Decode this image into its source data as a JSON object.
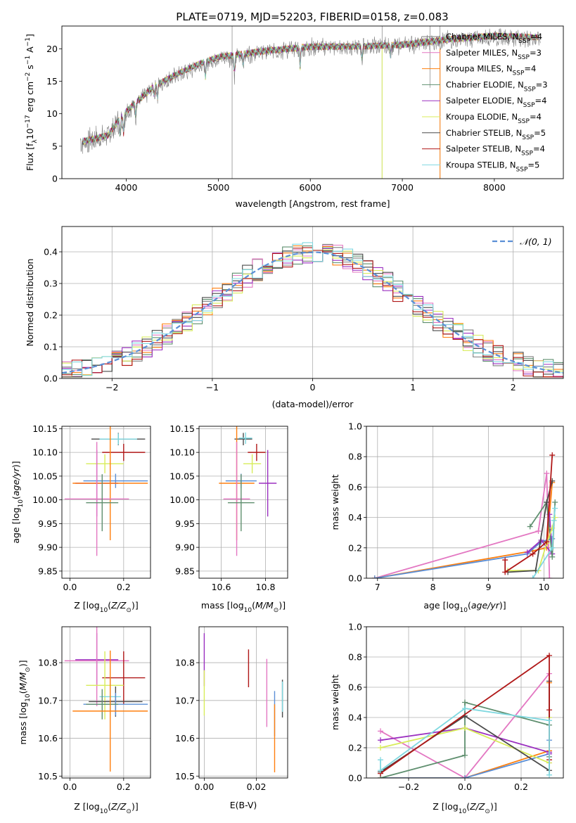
{
  "figure_title": "PLATE=0719, MJD=52203, FIBERID=0158, z=0.083",
  "models": [
    {
      "name": "Chabrier MILES, N",
      "nssp": "4",
      "color": "#7f7f7f"
    },
    {
      "name": "Salpeter MILES, N",
      "nssp": "3",
      "color": "#e377c2"
    },
    {
      "name": "Kroupa MILES, N",
      "nssp": "4",
      "color": "#ff7f0e"
    },
    {
      "name": "Chabrier ELODIE, N",
      "nssp": "3",
      "color": "#5f8f6f"
    },
    {
      "name": "Salpeter ELODIE, N",
      "nssp": "4",
      "color": "#9b30c0"
    },
    {
      "name": "Kroupa ELODIE, N",
      "nssp": "4",
      "color": "#d8ec5a"
    },
    {
      "name": "Chabrier STELIB, N",
      "nssp": "5",
      "color": "#4a4a4a"
    },
    {
      "name": "Salpeter STELIB, N",
      "nssp": "4",
      "color": "#b01818"
    },
    {
      "name": "Kroupa STELIB, N",
      "nssp": "5",
      "color": "#7fd8e0"
    }
  ],
  "nssp_sub": "SSP",
  "chart_data": [
    {
      "id": "spectrum",
      "type": "line",
      "xlabel": "wavelength [Angstrom, rest frame]",
      "ylabel": "Flux [f",
      "xlim": [
        3300,
        8750
      ],
      "ylim": [
        0,
        23.5
      ],
      "xticks": [
        4000,
        5000,
        6000,
        7000,
        8000
      ],
      "yticks": [
        0,
        5,
        10,
        15,
        20
      ],
      "continuum": [
        [
          3500,
          5.5
        ],
        [
          3800,
          6.5
        ],
        [
          3950,
          9.5
        ],
        [
          4100,
          11.5
        ],
        [
          4300,
          14
        ],
        [
          4500,
          15.5
        ],
        [
          4800,
          17.5
        ],
        [
          5000,
          18.5
        ],
        [
          5500,
          19.5
        ],
        [
          6000,
          20.2
        ],
        [
          6500,
          20.3
        ],
        [
          7000,
          20.5
        ],
        [
          7500,
          21.3
        ],
        [
          8000,
          21.8
        ],
        [
          8500,
          21.5
        ]
      ],
      "grid": false,
      "legend": "right"
    },
    {
      "id": "residual_hist",
      "type": "step",
      "xlabel": "(data-model)/error",
      "ylabel": "Normed distribution",
      "xlim": [
        -2.5,
        2.5
      ],
      "ylim": [
        0,
        0.48
      ],
      "xticks": [
        -2,
        -1,
        0,
        1,
        2
      ],
      "yticks": [
        0.0,
        0.1,
        0.2,
        0.3,
        0.4
      ],
      "gaussian_label": "𝒩(0, 1)",
      "gaussian_color": "#5b8fd6",
      "grid": true,
      "legend": "top-right"
    },
    {
      "id": "age_vs_Z",
      "type": "errorbar",
      "xlabel": "Z [log",
      "ylabel": "age  [log",
      "xlim": [
        -0.03,
        0.3
      ],
      "ylim": [
        9.835,
        10.155
      ],
      "xticks": [
        0.0,
        0.2
      ],
      "yticks": [
        9.85,
        9.9,
        9.95,
        10.0,
        10.05,
        10.1,
        10.15
      ],
      "points": [
        {
          "c": "#4a4a4a",
          "x": 0.18,
          "xerr": 0.1,
          "y": 10.128,
          "yerr": 0.013
        },
        {
          "c": "#7fd8e0",
          "x": 0.18,
          "xerr": 0.07,
          "y": 10.128,
          "yerr": 0.012
        },
        {
          "c": "#b01818",
          "x": 0.2,
          "xerr": 0.08,
          "y": 10.1,
          "yerr": 0.018
        },
        {
          "c": "#d8ec5a",
          "x": 0.13,
          "xerr": 0.07,
          "y": 10.076,
          "yerr": 0.02
        },
        {
          "c": "#5b8fd6",
          "x": 0.17,
          "xerr": 0.12,
          "y": 10.04,
          "yerr": 0.015
        },
        {
          "c": "#9b30c0",
          "x": 0.1,
          "xerr": 0.08,
          "y": 10.035,
          "yerr": 0.07
        },
        {
          "c": "#ff7f0e",
          "x": 0.15,
          "xerr": 0.14,
          "y": 10.035,
          "yerr": 0.12
        },
        {
          "c": "#e377c2",
          "x": 0.1,
          "xerr": 0.12,
          "y": 10.002,
          "yerr": 0.12
        },
        {
          "c": "#5f8f6f",
          "x": 0.12,
          "xerr": 0.06,
          "y": 9.994,
          "yerr": 0.06
        }
      ]
    },
    {
      "id": "age_vs_mass",
      "type": "errorbar",
      "xlabel": "mass [log",
      "xlim": [
        10.5,
        10.9
      ],
      "ylim": [
        9.835,
        10.155
      ],
      "xticks": [
        10.6,
        10.8
      ],
      "yticks": [
        9.85,
        9.9,
        9.95,
        10.0,
        10.05,
        10.1,
        10.15
      ],
      "points": [
        {
          "c": "#4a4a4a",
          "x": 10.7,
          "xerr": 0.04,
          "y": 10.128,
          "yerr": 0.013
        },
        {
          "c": "#7fd8e0",
          "x": 10.71,
          "xerr": 0.03,
          "y": 10.13,
          "yerr": 0.012
        },
        {
          "c": "#b01818",
          "x": 10.76,
          "xerr": 0.04,
          "y": 10.1,
          "yerr": 0.018
        },
        {
          "c": "#d8ec5a",
          "x": 10.74,
          "xerr": 0.04,
          "y": 10.076,
          "yerr": 0.02
        },
        {
          "c": "#5b8fd6",
          "x": 10.69,
          "xerr": 0.07,
          "y": 10.04,
          "yerr": 0.015
        },
        {
          "c": "#9b30c0",
          "x": 10.81,
          "xerr": 0.04,
          "y": 10.035,
          "yerr": 0.07
        },
        {
          "c": "#ff7f0e",
          "x": 10.67,
          "xerr": 0.08,
          "y": 10.035,
          "yerr": 0.12
        },
        {
          "c": "#e377c2",
          "x": 10.67,
          "xerr": 0.06,
          "y": 10.002,
          "yerr": 0.12
        },
        {
          "c": "#5f8f6f",
          "x": 10.69,
          "xerr": 0.06,
          "y": 9.994,
          "yerr": 0.06
        }
      ]
    },
    {
      "id": "weight_vs_age",
      "type": "line",
      "xlabel": "age  [log",
      "ylabel": "mass weight",
      "xlim": [
        6.8,
        10.35
      ],
      "ylim": [
        0,
        1
      ],
      "xticks": [
        7,
        8,
        9,
        10
      ],
      "yticks": [
        0.0,
        0.2,
        0.4,
        0.6,
        0.8,
        1.0
      ],
      "series": [
        {
          "c": "#e377c2",
          "x": [
            6.95,
            9.9,
            10.05,
            10.1
          ],
          "y": [
            0.0,
            0.31,
            0.69,
            0.0
          ]
        },
        {
          "c": "#ff7f0e",
          "x": [
            6.95,
            9.8,
            10.05,
            10.15
          ],
          "y": [
            0.0,
            0.18,
            0.2,
            0.63
          ]
        },
        {
          "c": "#5b8fd6",
          "x": [
            6.95,
            9.7,
            9.95,
            10.15
          ],
          "y": [
            0.0,
            0.16,
            0.24,
            0.26
          ]
        },
        {
          "c": "#9b30c0",
          "x": [
            9.7,
            9.95,
            10.15,
            10.1
          ],
          "y": [
            0.17,
            0.25,
            0.16,
            0.42
          ]
        },
        {
          "c": "#5f8f6f",
          "x": [
            9.75,
            10.05,
            10.15,
            10.2
          ],
          "y": [
            0.34,
            0.5,
            0.14,
            0.5
          ]
        },
        {
          "c": "#d8ec5a",
          "x": [
            9.35,
            9.9,
            10.05,
            10.15,
            10.2
          ],
          "y": [
            0.05,
            0.05,
            0.23,
            0.33,
            0.4
          ]
        },
        {
          "c": "#4a4a4a",
          "x": [
            9.35,
            9.85,
            10.05,
            10.15
          ],
          "y": [
            0.04,
            0.05,
            0.5,
            0.64
          ]
        },
        {
          "c": "#b01818",
          "x": [
            9.3,
            9.3,
            9.8,
            10.05,
            10.15
          ],
          "y": [
            0.12,
            0.04,
            0.16,
            0.24,
            0.81
          ]
        },
        {
          "c": "#7fd8e0",
          "x": [
            9.8,
            10.15,
            10.18,
            10.2
          ],
          "y": [
            0.0,
            0.2,
            0.38,
            0.46
          ]
        }
      ]
    },
    {
      "id": "mass_vs_Z",
      "type": "errorbar",
      "xlabel": "Z [log",
      "ylabel": "mass [log",
      "xlim": [
        -0.03,
        0.3
      ],
      "ylim": [
        10.495,
        10.895
      ],
      "xticks": [
        0.0,
        0.2
      ],
      "yticks": [
        10.5,
        10.6,
        10.7,
        10.8
      ],
      "points": [
        {
          "c": "#9b30c0",
          "x": 0.1,
          "xerr": 0.08,
          "y": 10.808,
          "yerr": 0.07
        },
        {
          "c": "#e377c2",
          "x": 0.1,
          "xerr": 0.12,
          "y": 10.805,
          "yerr": 0.12
        },
        {
          "c": "#b01818",
          "x": 0.2,
          "xerr": 0.08,
          "y": 10.76,
          "yerr": 0.07
        },
        {
          "c": "#d8ec5a",
          "x": 0.13,
          "xerr": 0.07,
          "y": 10.74,
          "yerr": 0.09
        },
        {
          "c": "#7fd8e0",
          "x": 0.15,
          "xerr": 0.04,
          "y": 10.71,
          "yerr": 0.05
        },
        {
          "c": "#4a4a4a",
          "x": 0.17,
          "xerr": 0.1,
          "y": 10.697,
          "yerr": 0.04
        },
        {
          "c": "#5b8fd6",
          "x": 0.17,
          "xerr": 0.12,
          "y": 10.69,
          "yerr": 0.03
        },
        {
          "c": "#5f8f6f",
          "x": 0.12,
          "xerr": 0.06,
          "y": 10.69,
          "yerr": 0.04
        },
        {
          "c": "#ff7f0e",
          "x": 0.15,
          "xerr": 0.14,
          "y": 10.672,
          "yerr": 0.16
        }
      ]
    },
    {
      "id": "mass_vs_ebv",
      "type": "errorbar",
      "xlabel": "E(B-V)",
      "xlim": [
        -0.002,
        0.032
      ],
      "ylim": [
        10.495,
        10.895
      ],
      "xticks": [
        0.0,
        0.02
      ],
      "yticks": [
        10.5,
        10.6,
        10.7,
        10.8
      ],
      "points": [
        {
          "c": "#9b30c0",
          "x": 0.0,
          "xerr": 0,
          "y": 10.808,
          "yerr": 0.07
        },
        {
          "c": "#d8ec5a",
          "x": 0.0,
          "xerr": 0,
          "y": 10.72,
          "yerr": 0.06
        },
        {
          "c": "#b01818",
          "x": 0.017,
          "xerr": 0,
          "y": 10.785,
          "yerr": 0.05
        },
        {
          "c": "#e377c2",
          "x": 0.024,
          "xerr": 0,
          "y": 10.72,
          "yerr": 0.09
        },
        {
          "c": "#5b8fd6",
          "x": 0.027,
          "xerr": 0,
          "y": 10.665,
          "yerr": 0.06
        },
        {
          "c": "#ff7f0e",
          "x": 0.027,
          "xerr": 0,
          "y": 10.6,
          "yerr": 0.09
        },
        {
          "c": "#4a4a4a",
          "x": 0.03,
          "xerr": 0,
          "y": 10.705,
          "yerr": 0.05
        },
        {
          "c": "#7fd8e0",
          "x": 0.03,
          "xerr": 0,
          "y": 10.71,
          "yerr": 0.04
        }
      ]
    },
    {
      "id": "weight_vs_Z",
      "type": "line",
      "xlabel": "Z [log",
      "ylabel": "mass weight",
      "xlim": [
        -0.35,
        0.35
      ],
      "ylim": [
        0,
        1
      ],
      "xticks": [
        -0.2,
        0.0,
        0.2
      ],
      "yticks": [
        0.0,
        0.2,
        0.4,
        0.6,
        0.8,
        1.0
      ],
      "series": [
        {
          "c": "#e377c2",
          "x": [
            -0.3,
            0.0,
            0.3,
            0.3
          ],
          "y": [
            0.31,
            0.0,
            0.69,
            0.1
          ]
        },
        {
          "c": "#ff7f0e",
          "x": [
            -0.3,
            0.0,
            0.3,
            0.3
          ],
          "y": [
            0.0,
            0.0,
            0.18,
            0.63
          ]
        },
        {
          "c": "#5b8fd6",
          "x": [
            -0.3,
            0.0,
            0.3,
            0.3
          ],
          "y": [
            0.0,
            0.0,
            0.16,
            0.25
          ]
        },
        {
          "c": "#9b30c0",
          "x": [
            -0.3,
            0.0,
            0.3,
            0.3
          ],
          "y": [
            0.25,
            0.33,
            0.17,
            0.16
          ]
        },
        {
          "c": "#5f8f6f",
          "x": [
            -0.3,
            0.0,
            0.0,
            0.3,
            0.3
          ],
          "y": [
            0.0,
            0.15,
            0.5,
            0.35,
            0.14
          ]
        },
        {
          "c": "#d8ec5a",
          "x": [
            -0.3,
            0.0,
            0.3,
            0.3
          ],
          "y": [
            0.2,
            0.33,
            0.1,
            0.4
          ]
        },
        {
          "c": "#4a4a4a",
          "x": [
            -0.3,
            0.0,
            0.3,
            0.3
          ],
          "y": [
            0.04,
            0.41,
            0.05,
            0.64
          ]
        },
        {
          "c": "#b01818",
          "x": [
            -0.3,
            0.3,
            0.3,
            0.3
          ],
          "y": [
            0.03,
            0.81,
            0.45,
            0.12
          ]
        },
        {
          "c": "#7fd8e0",
          "x": [
            -0.3,
            -0.3,
            0.0,
            0.3,
            0.3
          ],
          "y": [
            0.12,
            0.05,
            0.46,
            0.38,
            0.02
          ]
        }
      ]
    }
  ]
}
